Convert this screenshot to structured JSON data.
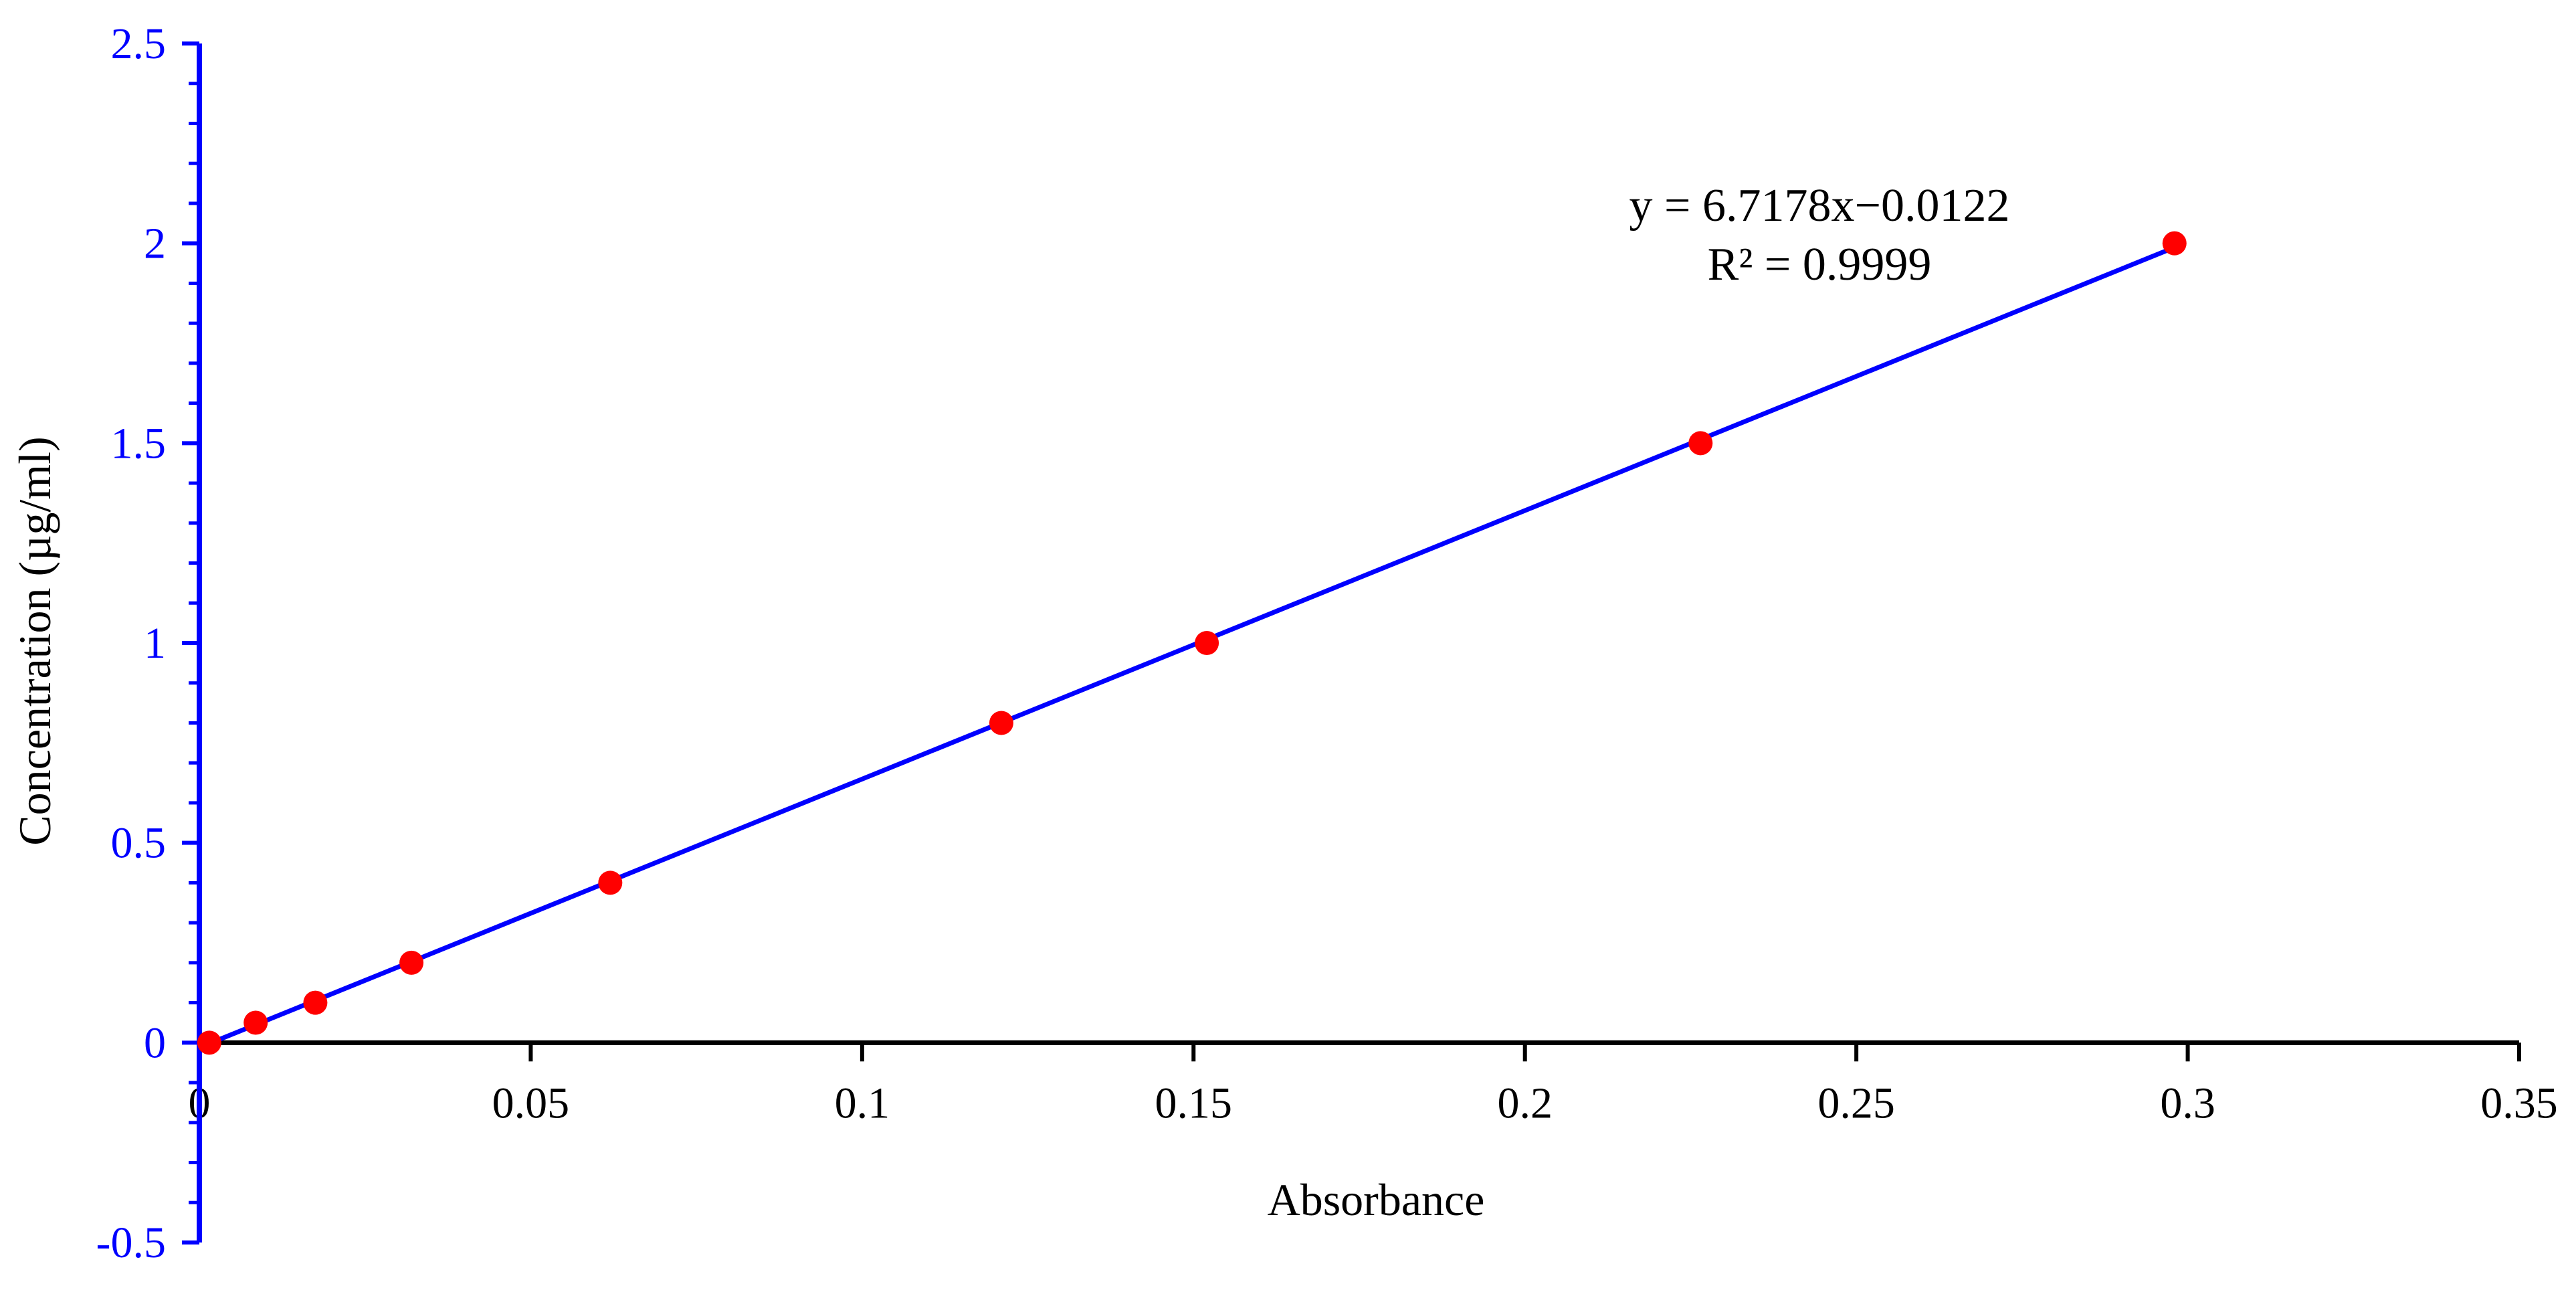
{
  "chart_data": {
    "type": "scatter",
    "title": "",
    "xlabel": "Absorbance",
    "ylabel": "Concentration  (µg/ml)",
    "xlim": [
      0,
      0.35
    ],
    "ylim": [
      -0.5,
      2.5
    ],
    "x_ticks": [
      0,
      0.05,
      0.1,
      0.15,
      0.2,
      0.25,
      0.3,
      0.35
    ],
    "x_tick_labels": [
      "0",
      "0.05",
      "0.1",
      "0.15",
      "0.2",
      "0.25",
      "0.3",
      "0.35"
    ],
    "y_ticks": [
      -0.5,
      0,
      0.5,
      1,
      1.5,
      2,
      2.5
    ],
    "y_tick_labels": [
      "-0.5",
      "0",
      "0.5",
      "1",
      "1.5",
      "2",
      "2.5"
    ],
    "y_minor_step": 0.1,
    "grid": false,
    "legend": "none",
    "series": [
      {
        "x": [
          0.0015,
          0.0085,
          0.0175,
          0.032,
          0.062,
          0.121,
          0.152,
          0.2265,
          0.298
        ],
        "y": [
          0,
          0.05,
          0.1,
          0.2,
          0.4,
          0.8,
          1.0,
          1.5,
          2.0
        ],
        "marker_color": "#ff0000"
      }
    ],
    "trendline": {
      "slope": 6.7178,
      "intercept": -0.0122,
      "x_range": [
        0,
        0.298
      ],
      "color": "#0000ff"
    },
    "annotations": {
      "equation": "y = 6.7178x−0.0122",
      "r_squared": "R² = 0.9999"
    },
    "colors": {
      "y_axis": "#0000ff",
      "x_axis": "#000000",
      "y_tick_labels": "#0000ff",
      "x_tick_labels": "#000000"
    }
  }
}
